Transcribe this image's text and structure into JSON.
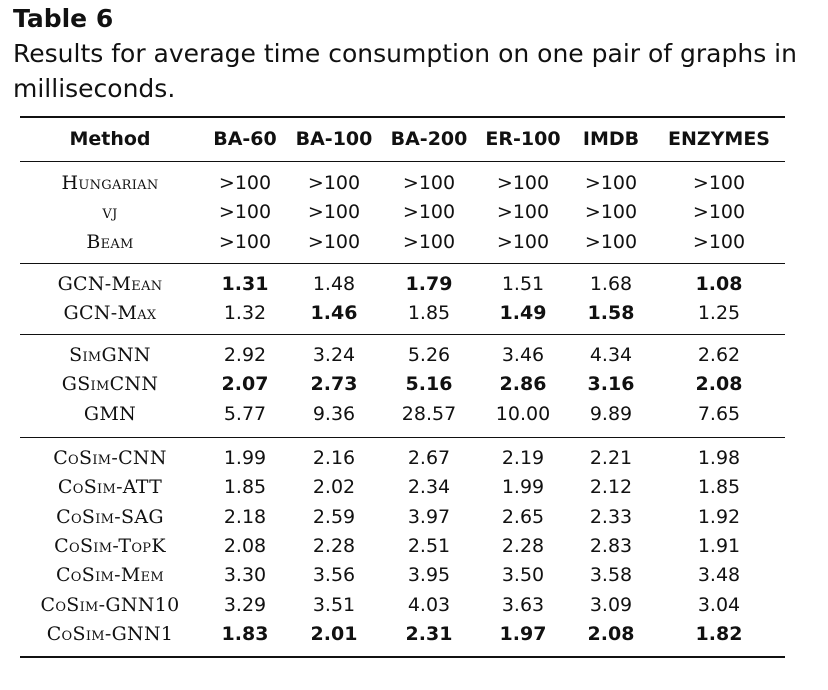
{
  "caption": {
    "label": "Table 6",
    "text_line1": "Results for average time consumption on one pair of graphs in",
    "text_line2": "milliseconds."
  },
  "header": [
    "Method",
    "BA-60",
    "BA-100",
    "BA-200",
    "ER-100",
    "IMDB",
    "ENZYMES"
  ],
  "groups": [
    [
      {
        "method": "Hungarian",
        "values": [
          ">100",
          ">100",
          ">100",
          ">100",
          ">100",
          ">100"
        ],
        "bold": []
      },
      {
        "method": "vj",
        "values": [
          ">100",
          ">100",
          ">100",
          ">100",
          ">100",
          ">100"
        ],
        "bold": []
      },
      {
        "method": "Beam",
        "values": [
          ">100",
          ">100",
          ">100",
          ">100",
          ">100",
          ">100"
        ],
        "bold": []
      }
    ],
    [
      {
        "method": "GCN-Mean",
        "values": [
          "1.31",
          "1.48",
          "1.79",
          "1.51",
          "1.68",
          "1.08"
        ],
        "bold": [
          0,
          2,
          5
        ]
      },
      {
        "method": "GCN-Max",
        "values": [
          "1.32",
          "1.46",
          "1.85",
          "1.49",
          "1.58",
          "1.25"
        ],
        "bold": [
          1,
          3,
          4
        ]
      }
    ],
    [
      {
        "method": "SimGNN",
        "values": [
          "2.92",
          "3.24",
          "5.26",
          "3.46",
          "4.34",
          "2.62"
        ],
        "bold": []
      },
      {
        "method": "GSimCNN",
        "values": [
          "2.07",
          "2.73",
          "5.16",
          "2.86",
          "3.16",
          "2.08"
        ],
        "bold": [
          0,
          1,
          2,
          3,
          4,
          5
        ]
      },
      {
        "method": "GMN",
        "values": [
          "5.77",
          "9.36",
          "28.57",
          "10.00",
          "9.89",
          "7.65"
        ],
        "bold": []
      }
    ],
    [
      {
        "method": "CoSim-CNN",
        "values": [
          "1.99",
          "2.16",
          "2.67",
          "2.19",
          "2.21",
          "1.98"
        ],
        "bold": []
      },
      {
        "method": "CoSim-ATT",
        "values": [
          "1.85",
          "2.02",
          "2.34",
          "1.99",
          "2.12",
          "1.85"
        ],
        "bold": []
      },
      {
        "method": "CoSim-SAG",
        "values": [
          "2.18",
          "2.59",
          "3.97",
          "2.65",
          "2.33",
          "1.92"
        ],
        "bold": []
      },
      {
        "method": "CoSim-TopK",
        "values": [
          "2.08",
          "2.28",
          "2.51",
          "2.28",
          "2.83",
          "1.91"
        ],
        "bold": []
      },
      {
        "method": "CoSim-Mem",
        "values": [
          "3.30",
          "3.56",
          "3.95",
          "3.50",
          "3.58",
          "3.48"
        ],
        "bold": []
      },
      {
        "method": "CoSim-GNN10",
        "values": [
          "3.29",
          "3.51",
          "4.03",
          "3.63",
          "3.09",
          "3.04"
        ],
        "bold": []
      },
      {
        "method": "CoSim-GNN1",
        "values": [
          "1.83",
          "2.01",
          "2.31",
          "1.97",
          "2.08",
          "1.82"
        ],
        "bold": [
          0,
          1,
          2,
          3,
          4,
          5
        ]
      }
    ]
  ]
}
